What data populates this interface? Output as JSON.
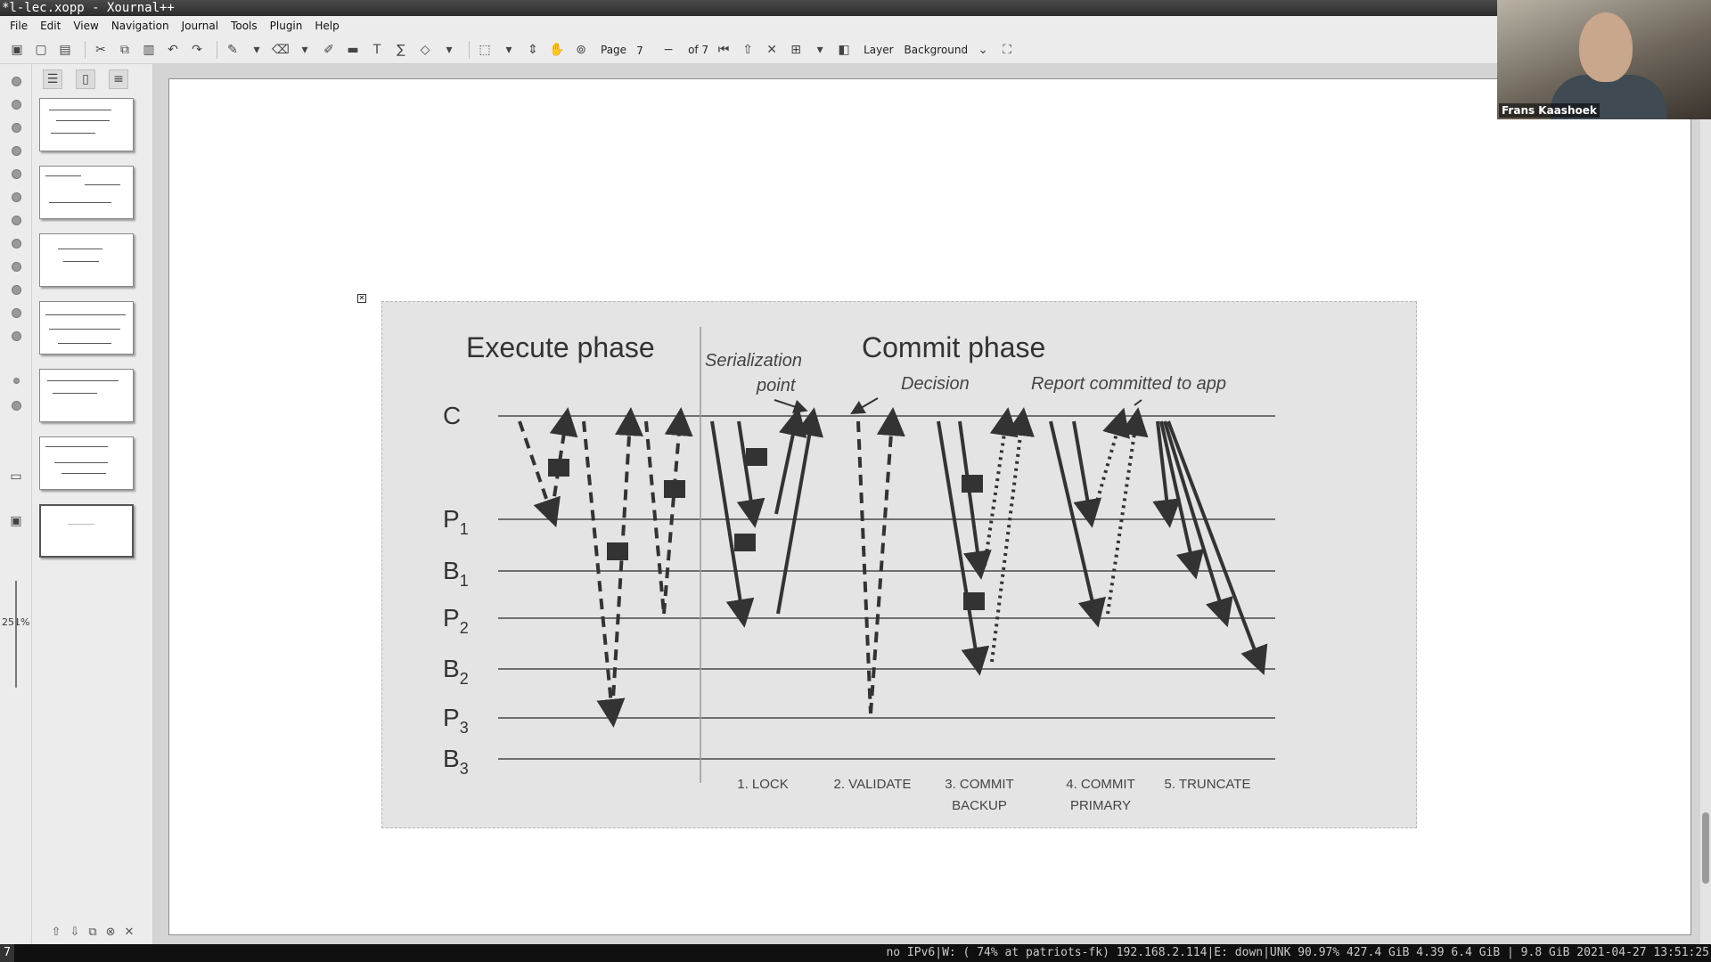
{
  "window": {
    "title": "*l-lec.xopp - Xournal++"
  },
  "menu": [
    "File",
    "Edit",
    "View",
    "Navigation",
    "Journal",
    "Tools",
    "Plugin",
    "Help"
  ],
  "toolbar": {
    "page_label": "Page",
    "page_value": "7",
    "page_of": "of 7",
    "layer_label": "Layer",
    "layer_value": "Background"
  },
  "sidebar": {
    "zoom": "251%"
  },
  "slide": {
    "execute_title": "Execute phase",
    "commit_title": "Commit phase",
    "annotation_serialization_1": "Serialization",
    "annotation_serialization_2": "point",
    "annotation_decision": "Decision",
    "annotation_report": "Report committed to app",
    "rows": [
      {
        "base": "C",
        "sub": ""
      },
      {
        "base": "P",
        "sub": "1"
      },
      {
        "base": "B",
        "sub": "1"
      },
      {
        "base": "P",
        "sub": "2"
      },
      {
        "base": "B",
        "sub": "2"
      },
      {
        "base": "P",
        "sub": "3"
      },
      {
        "base": "B",
        "sub": "3"
      }
    ],
    "steps": [
      {
        "line1": "1. LOCK",
        "line2": ""
      },
      {
        "line1": "2. VALIDATE",
        "line2": ""
      },
      {
        "line1": "3. COMMIT",
        "line2": "BACKUP"
      },
      {
        "line1": "4. COMMIT",
        "line2": "PRIMARY"
      },
      {
        "line1": "5. TRUNCATE",
        "line2": ""
      }
    ]
  },
  "video": {
    "name": "Frans Kaashoek"
  },
  "statusbar": {
    "workspace": "7",
    "text": "no IPv6|W: ( 74% at patriots-fk) 192.168.2.114|E: down|UNK 90.97% 427.4 GiB 4.39 6.4 GiB | 9.8 GiB 2021-04-27 13:51:25"
  }
}
